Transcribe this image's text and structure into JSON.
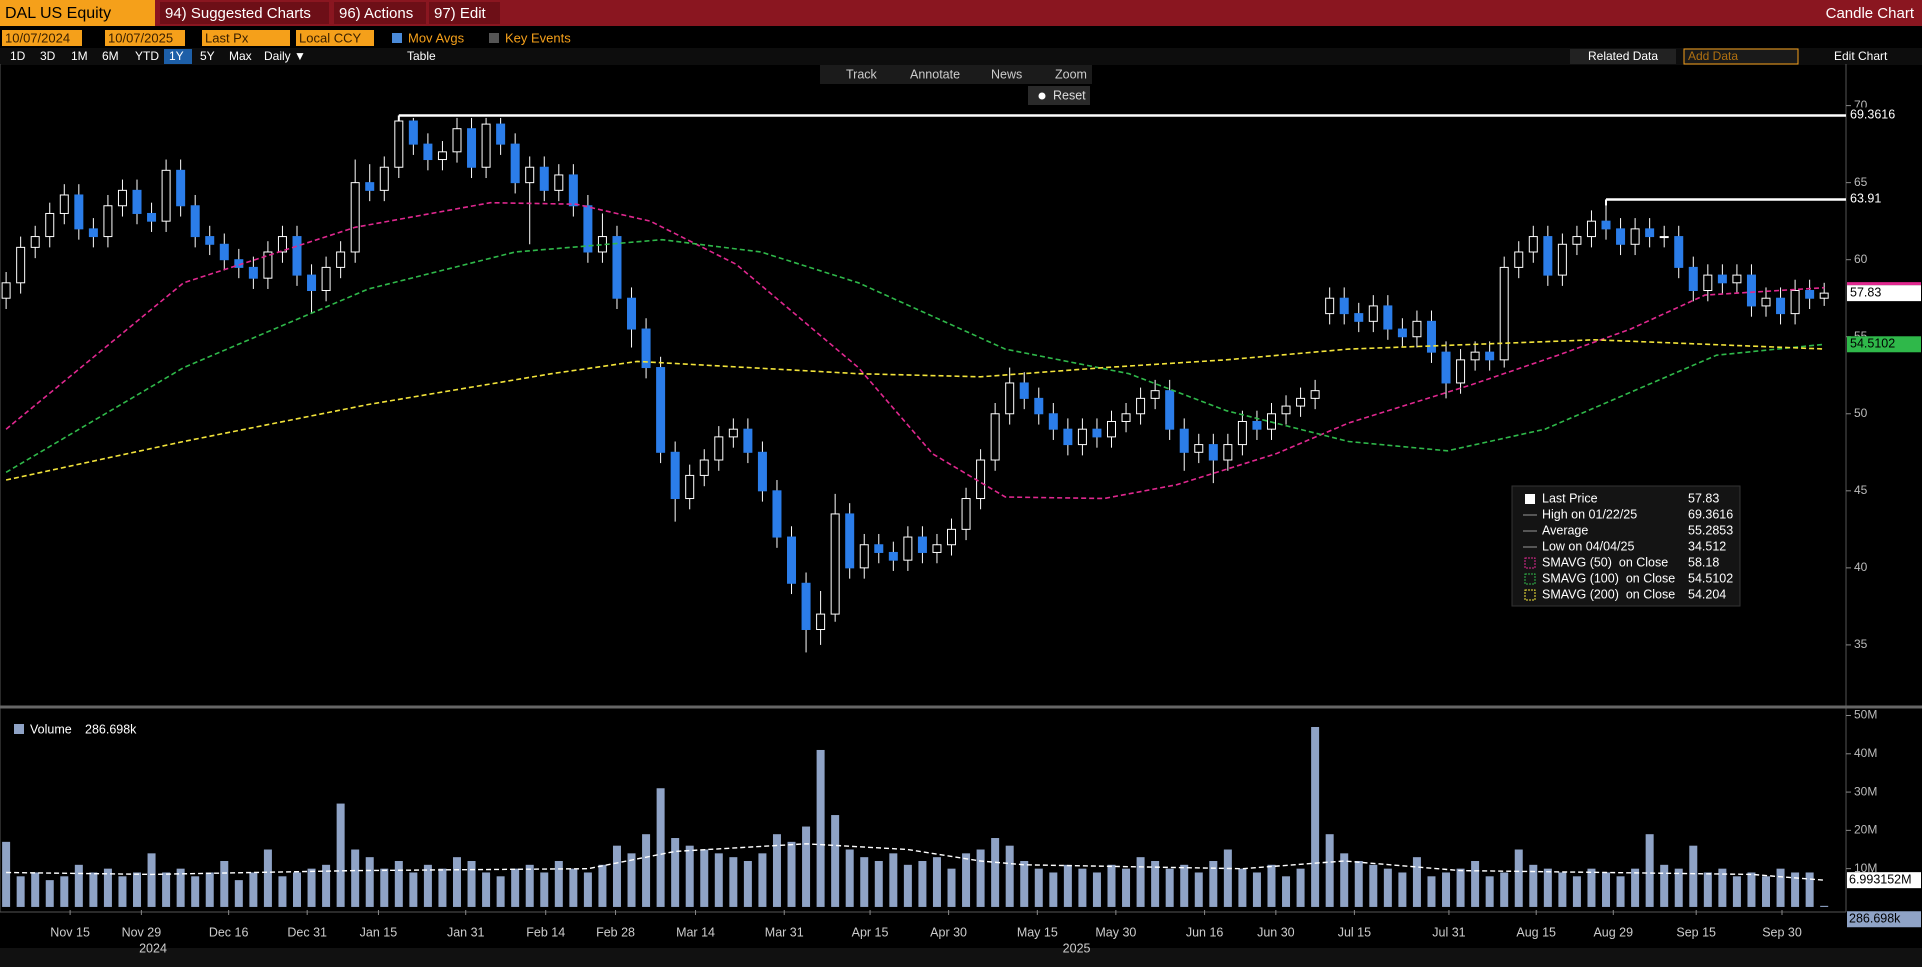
{
  "header": {
    "ticker": "DAL US Equity",
    "menus": [
      "94) Suggested Charts",
      "96) Actions",
      "97) Edit"
    ],
    "chart_name": "Candle Chart"
  },
  "controls": {
    "start_date": "10/07/2024",
    "end_date": "10/07/2025",
    "field": "Last Px",
    "currency": "Local CCY",
    "options": [
      "Mov Avgs",
      "Key Events"
    ],
    "ranges": [
      "1D",
      "3D",
      "1M",
      "6M",
      "YTD",
      "1Y",
      "5Y",
      "Max"
    ],
    "selected_range": 5,
    "frequency": "Daily ▼",
    "table": "Table",
    "related_data": "Related Data",
    "add_data": "Add Data",
    "edit_chart": "Edit Chart",
    "tools": [
      "Track",
      "Annotate",
      "News",
      "Zoom"
    ],
    "reset": "Reset"
  },
  "chart_data": [
    {
      "type": "candlestick",
      "up_fill": "#000000",
      "down_color": "#2b7de9",
      "wick_color": "#ffffff",
      "xlim": [
        -0.42,
        126.5
      ],
      "ylim": [
        31.1,
        72.7
      ],
      "yticks": [
        35,
        40,
        45,
        50,
        55,
        60,
        65,
        70
      ],
      "xticks": [
        {
          "value": 4.4,
          "label": "Nov 15"
        },
        {
          "value": 9.3,
          "label": "Nov 29"
        },
        {
          "value": 15.3,
          "label": "Dec 16"
        },
        {
          "value": 20.7,
          "label": "Dec 31"
        },
        {
          "value": 25.6,
          "label": "Jan 15"
        },
        {
          "value": 31.6,
          "label": "Jan 31"
        },
        {
          "value": 37.1,
          "label": "Feb 14"
        },
        {
          "value": 41.9,
          "label": "Feb 28"
        },
        {
          "value": 47.4,
          "label": "Mar 14"
        },
        {
          "value": 53.5,
          "label": "Mar 31"
        },
        {
          "value": 59.4,
          "label": "Apr 15"
        },
        {
          "value": 64.8,
          "label": "Apr 30"
        },
        {
          "value": 70.9,
          "label": "May 15"
        },
        {
          "value": 76.3,
          "label": "May 30"
        },
        {
          "value": 82.4,
          "label": "Jun 16"
        },
        {
          "value": 87.3,
          "label": "Jun 30"
        },
        {
          "value": 92.7,
          "label": "Jul 15"
        },
        {
          "value": 99.2,
          "label": "Jul 31"
        },
        {
          "value": 105.2,
          "label": "Aug 15"
        },
        {
          "value": 110.5,
          "label": "Aug 29"
        },
        {
          "value": 116.2,
          "label": "Sep 15"
        },
        {
          "value": 122.1,
          "label": "Sep 30"
        }
      ],
      "year_labels": [
        {
          "value": 10.1,
          "label": "2024"
        },
        {
          "value": 73.6,
          "label": "2025"
        }
      ],
      "open": [
        57.5,
        58.5,
        60.8,
        61.5,
        63.0,
        64.2,
        62.0,
        61.5,
        63.5,
        64.5,
        63.0,
        62.5,
        65.8,
        63.5,
        61.5,
        61.0,
        60.0,
        59.5,
        58.8,
        60.5,
        61.5,
        59.0,
        58.0,
        59.5,
        60.5,
        65.0,
        64.5,
        66.0,
        69.0,
        67.5,
        66.5,
        67.0,
        68.5,
        66.0,
        68.8,
        67.5,
        65.0,
        66.0,
        64.5,
        65.5,
        63.5,
        60.5,
        61.5,
        57.5,
        55.5,
        53.0,
        47.5,
        44.5,
        46.0,
        47.0,
        48.5,
        49.0,
        47.5,
        45.0,
        42.0,
        39.0,
        36.0,
        37.0,
        43.5,
        40.0,
        41.5,
        41.0,
        40.5,
        42.0,
        41.0,
        41.5,
        42.5,
        44.5,
        47.0,
        50.0,
        52.0,
        51.0,
        50.0,
        49.0,
        48.0,
        49.0,
        48.5,
        49.5,
        50.0,
        51.0,
        51.5,
        49.0,
        47.5,
        48.0,
        47.0,
        48.0,
        49.5,
        49.0,
        50.0,
        50.5,
        51.0,
        56.5,
        57.5,
        56.5,
        56.0,
        57.0,
        55.5,
        55.0,
        56.0,
        54.0,
        52.0,
        53.5,
        54.0,
        53.5,
        59.5,
        60.5,
        61.5,
        59.0,
        61.0,
        61.5,
        62.5,
        62.0,
        61.0,
        62.0,
        61.5,
        61.5,
        59.5,
        58.0,
        59.0,
        58.5,
        59.0,
        57.0,
        57.5,
        56.5,
        58.0,
        57.5
      ],
      "high": [
        59.2,
        61.5,
        62.2,
        63.7,
        64.9,
        64.9,
        62.7,
        64.2,
        65.2,
        65.2,
        63.7,
        66.5,
        66.5,
        64.2,
        62.2,
        61.7,
        60.7,
        60.2,
        61.2,
        62.2,
        62.2,
        59.7,
        60.2,
        61.2,
        66.5,
        66.2,
        66.7,
        69.3616,
        69.2,
        68.2,
        67.7,
        69.2,
        69.2,
        69.2,
        69.2,
        68.2,
        66.7,
        66.7,
        66.2,
        66.2,
        64.2,
        63.0,
        62.2,
        58.2,
        56.2,
        53.7,
        48.2,
        46.7,
        47.7,
        49.2,
        49.7,
        49.7,
        48.2,
        45.7,
        42.7,
        39.7,
        38.5,
        44.8,
        44.2,
        42.2,
        42.2,
        41.7,
        42.7,
        42.7,
        42.2,
        43.2,
        45.2,
        47.7,
        50.7,
        53.0,
        52.7,
        51.7,
        50.7,
        49.7,
        49.7,
        49.7,
        50.2,
        50.7,
        51.7,
        52.2,
        52.2,
        49.7,
        48.7,
        48.7,
        48.7,
        50.2,
        50.2,
        50.7,
        51.2,
        51.7,
        52.2,
        58.2,
        58.2,
        57.2,
        57.7,
        57.7,
        56.2,
        56.7,
        56.7,
        54.7,
        54.2,
        54.7,
        54.7,
        60.2,
        61.2,
        62.2,
        62.2,
        61.7,
        62.2,
        63.2,
        63.91,
        62.7,
        62.7,
        62.7,
        62.2,
        62.2,
        60.2,
        59.7,
        59.7,
        59.7,
        59.7,
        58.2,
        58.2,
        58.7,
        58.7,
        58.5
      ],
      "low": [
        56.8,
        57.8,
        60.1,
        60.8,
        62.3,
        61.3,
        60.8,
        60.8,
        62.8,
        62.3,
        61.8,
        61.8,
        62.8,
        60.8,
        60.3,
        59.3,
        58.8,
        58.1,
        58.1,
        59.8,
        58.3,
        56.5,
        57.3,
        58.8,
        59.8,
        63.8,
        63.8,
        65.3,
        66.8,
        65.8,
        65.8,
        66.3,
        65.3,
        65.3,
        66.8,
        64.3,
        61.0,
        63.8,
        63.8,
        62.8,
        59.8,
        59.8,
        56.8,
        54.3,
        52.3,
        46.8,
        43.0,
        43.8,
        45.3,
        46.3,
        47.8,
        46.8,
        44.3,
        41.3,
        38.3,
        34.512,
        35.0,
        36.5,
        39.3,
        39.3,
        40.3,
        39.8,
        39.8,
        40.3,
        40.3,
        40.8,
        41.8,
        43.8,
        46.3,
        49.3,
        50.3,
        49.3,
        48.3,
        47.3,
        47.3,
        47.8,
        47.8,
        48.8,
        49.3,
        50.3,
        48.3,
        46.3,
        46.8,
        45.5,
        46.3,
        47.3,
        48.3,
        48.3,
        49.3,
        49.8,
        50.3,
        55.8,
        55.8,
        55.3,
        55.3,
        54.8,
        54.3,
        54.3,
        53.3,
        51.0,
        51.3,
        52.8,
        52.8,
        53.0,
        58.8,
        59.8,
        58.3,
        58.3,
        60.3,
        60.8,
        61.3,
        60.3,
        60.3,
        60.8,
        60.8,
        58.8,
        57.3,
        57.3,
        57.8,
        57.8,
        56.3,
        56.3,
        55.8,
        55.8,
        56.8,
        57.0
      ],
      "close": [
        58.5,
        60.8,
        61.5,
        63.0,
        64.2,
        62.0,
        61.5,
        63.5,
        64.5,
        63.0,
        62.5,
        65.8,
        63.5,
        61.5,
        61.0,
        60.0,
        59.5,
        58.8,
        60.5,
        61.5,
        59.0,
        58.0,
        59.5,
        60.5,
        65.0,
        64.5,
        66.0,
        69.0,
        67.5,
        66.5,
        67.0,
        68.5,
        66.0,
        68.8,
        67.5,
        65.0,
        66.0,
        64.5,
        65.5,
        63.5,
        60.5,
        61.5,
        57.5,
        55.5,
        53.0,
        47.5,
        44.5,
        46.0,
        47.0,
        48.5,
        49.0,
        47.5,
        45.0,
        42.0,
        39.0,
        36.0,
        37.0,
        43.5,
        40.0,
        41.5,
        41.0,
        40.5,
        42.0,
        41.0,
        41.5,
        42.5,
        44.5,
        47.0,
        50.0,
        52.0,
        51.0,
        50.0,
        49.0,
        48.0,
        49.0,
        48.5,
        49.5,
        50.0,
        51.0,
        51.5,
        49.0,
        47.5,
        48.0,
        47.0,
        48.0,
        49.5,
        49.0,
        50.0,
        50.5,
        51.0,
        51.5,
        57.5,
        56.5,
        56.0,
        57.0,
        55.5,
        55.0,
        56.0,
        54.0,
        52.0,
        53.5,
        54.0,
        53.5,
        59.5,
        60.5,
        61.5,
        59.0,
        61.0,
        61.5,
        62.5,
        62.0,
        61.0,
        62.0,
        61.5,
        61.5,
        59.5,
        58.0,
        59.0,
        58.5,
        59.0,
        57.0,
        57.5,
        56.5,
        58.0,
        57.5,
        57.83
      ],
      "series": [
        {
          "color": "#e0288f",
          "x": [
            0,
            12.2,
            24,
            33.3,
            39.2,
            44.3,
            50.2,
            58.6,
            63.7,
            68.7,
            75.5,
            80.5,
            87.3,
            92.3,
            100.8,
            106.7,
            111.7,
            116.8,
            125
          ],
          "values": [
            49.0,
            58.5,
            62.1,
            63.7,
            63.6,
            62.5,
            59.7,
            53.0,
            47.4,
            44.6,
            44.5,
            45.4,
            47.4,
            49.4,
            51.9,
            53.8,
            55.5,
            57.7,
            58.18
          ]
        },
        {
          "color": "#2fb84a",
          "x": [
            0,
            12.2,
            24.9,
            35,
            45.1,
            51.9,
            58.6,
            68.7,
            77.2,
            83.9,
            92.3,
            99.1,
            105.8,
            111.7,
            117.6,
            125
          ],
          "values": [
            46.2,
            53.0,
            58.1,
            60.5,
            61.3,
            60.5,
            58.5,
            54.2,
            52.6,
            50.2,
            48.2,
            47.6,
            49.0,
            51.4,
            53.8,
            54.5102
          ]
        },
        {
          "color": "#f2e33a",
          "x": [
            0,
            12.2,
            24.9,
            37.5,
            43.4,
            58.6,
            67,
            75.5,
            83.9,
            92.3,
            109.2,
            125
          ],
          "values": [
            45.7,
            48.2,
            50.6,
            52.6,
            53.4,
            52.6,
            52.4,
            53.0,
            53.5,
            54.2,
            54.8,
            54.204
          ]
        }
      ],
      "reference_lines": [
        69.3616,
        63.91
      ],
      "legend": [
        {
          "label": "Last Price",
          "value": 57.83
        },
        {
          "label": "High on 01/22/25",
          "value": 69.3616
        },
        {
          "label": "Average",
          "value": 55.2853
        },
        {
          "label": "Low on 04/04/25",
          "value": 34.512
        },
        {
          "label": "SMAVG (50)  on Close",
          "value": 58.18
        },
        {
          "label": "SMAVG (100)  on Close",
          "value": 54.5102
        },
        {
          "label": "SMAVG (200)  on Close",
          "value": 54.204
        }
      ]
    },
    {
      "type": "bar",
      "color": "#8fa3c6",
      "legend_label": "Volume",
      "last_label": "286.698k",
      "ma_label": "6.993152M",
      "ylim": [
        -0.8,
        51.7
      ],
      "yticks": [
        {
          "value": 10,
          "label": "10M"
        },
        {
          "value": 20,
          "label": "20M"
        },
        {
          "value": 30,
          "label": "30M"
        },
        {
          "value": 40,
          "label": "40M"
        },
        {
          "value": 50,
          "label": "50M"
        }
      ],
      "values": [
        17,
        8,
        9,
        7,
        8,
        11,
        9,
        10,
        8,
        9,
        14,
        9,
        10,
        8,
        9,
        12,
        7,
        9,
        15,
        8,
        9,
        10,
        11,
        27,
        15,
        13,
        10,
        12,
        9,
        11,
        10,
        13,
        12,
        9,
        8,
        10,
        11,
        9,
        12,
        10,
        9,
        11,
        16,
        14,
        19,
        31,
        18,
        16,
        15,
        14,
        13,
        12,
        14,
        19,
        17,
        21,
        41,
        24,
        15,
        13,
        12,
        14,
        11,
        12,
        13,
        10,
        14,
        15,
        18,
        16,
        12,
        10,
        9,
        11,
        10,
        9,
        11,
        10,
        13,
        12,
        10,
        11,
        9,
        12,
        15,
        10,
        9,
        11,
        8,
        10,
        47,
        19,
        14,
        12,
        11,
        10,
        9,
        13,
        8,
        9,
        10,
        12,
        8,
        9,
        15,
        11,
        10,
        9,
        8,
        10,
        9,
        8,
        10,
        19,
        11,
        10,
        16,
        9,
        10,
        8,
        9,
        8,
        10,
        9,
        9,
        0.286698
      ],
      "ma": {
        "color": "#ffffff",
        "x": [
          0,
          10,
          24,
          40,
          46,
          55,
          62,
          67,
          70,
          85,
          92,
          100,
          110,
          120,
          125
        ],
        "values": [
          9.0,
          8.5,
          9.5,
          10,
          14.5,
          16.5,
          15,
          12,
          11,
          10,
          12,
          9.5,
          9,
          8.5,
          6.993152
        ]
      }
    }
  ]
}
